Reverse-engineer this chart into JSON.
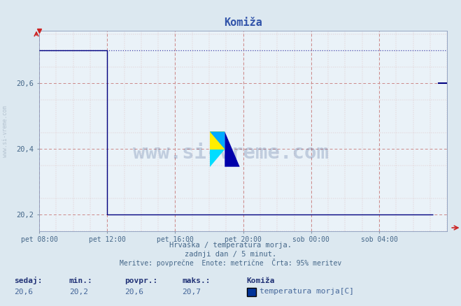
{
  "title": "Komiža",
  "bg_color": "#dce8f0",
  "plot_bg_color": "#eaf2f8",
  "line_color": "#000080",
  "dotted_line_color": "#4444aa",
  "grid_color_h": "#cc8888",
  "grid_color_v": "#cc8888",
  "grid_minor_color": "#ddbbbb",
  "xlabel_line1": "Hrvaška / temperatura morja.",
  "xlabel_line2": "zadnji dan / 5 minut.",
  "xlabel_line3": "Meritve: povprečne  Enote: metrične  Črta: 95% meritev",
  "ylabel_watermark": "www.si-vreme.com",
  "footer_labels": [
    "sedaj:",
    "min.:",
    "povpr.:",
    "maks.:",
    "Komiža"
  ],
  "footer_values": [
    "20,6",
    "20,2",
    "20,6",
    "20,7",
    "temperatura morja[C]"
  ],
  "legend_color": "#003399",
  "xticklabels": [
    "pet 08:00",
    "pet 12:00",
    "pet 16:00",
    "pet 20:00",
    "sob 00:00",
    "sob 04:00"
  ],
  "ytick_labels": [
    "20,2",
    "20,4",
    "20,6"
  ],
  "yticks": [
    20.2,
    20.4,
    20.6
  ],
  "ymin": 20.15,
  "ymax": 20.76,
  "xmin": 0,
  "xmax": 288,
  "xtick_pos": [
    0,
    48,
    96,
    144,
    192,
    240
  ],
  "drop_x": 48,
  "data_before_y": 20.7,
  "data_after_y": 20.2,
  "max_line_y": 20.7,
  "current_val_y": 20.6,
  "font_color_title": "#3355aa",
  "font_color_axis": "#446688",
  "font_color_footer_label": "#223377",
  "font_color_footer_value": "#446699",
  "arrow_color": "#cc2222"
}
